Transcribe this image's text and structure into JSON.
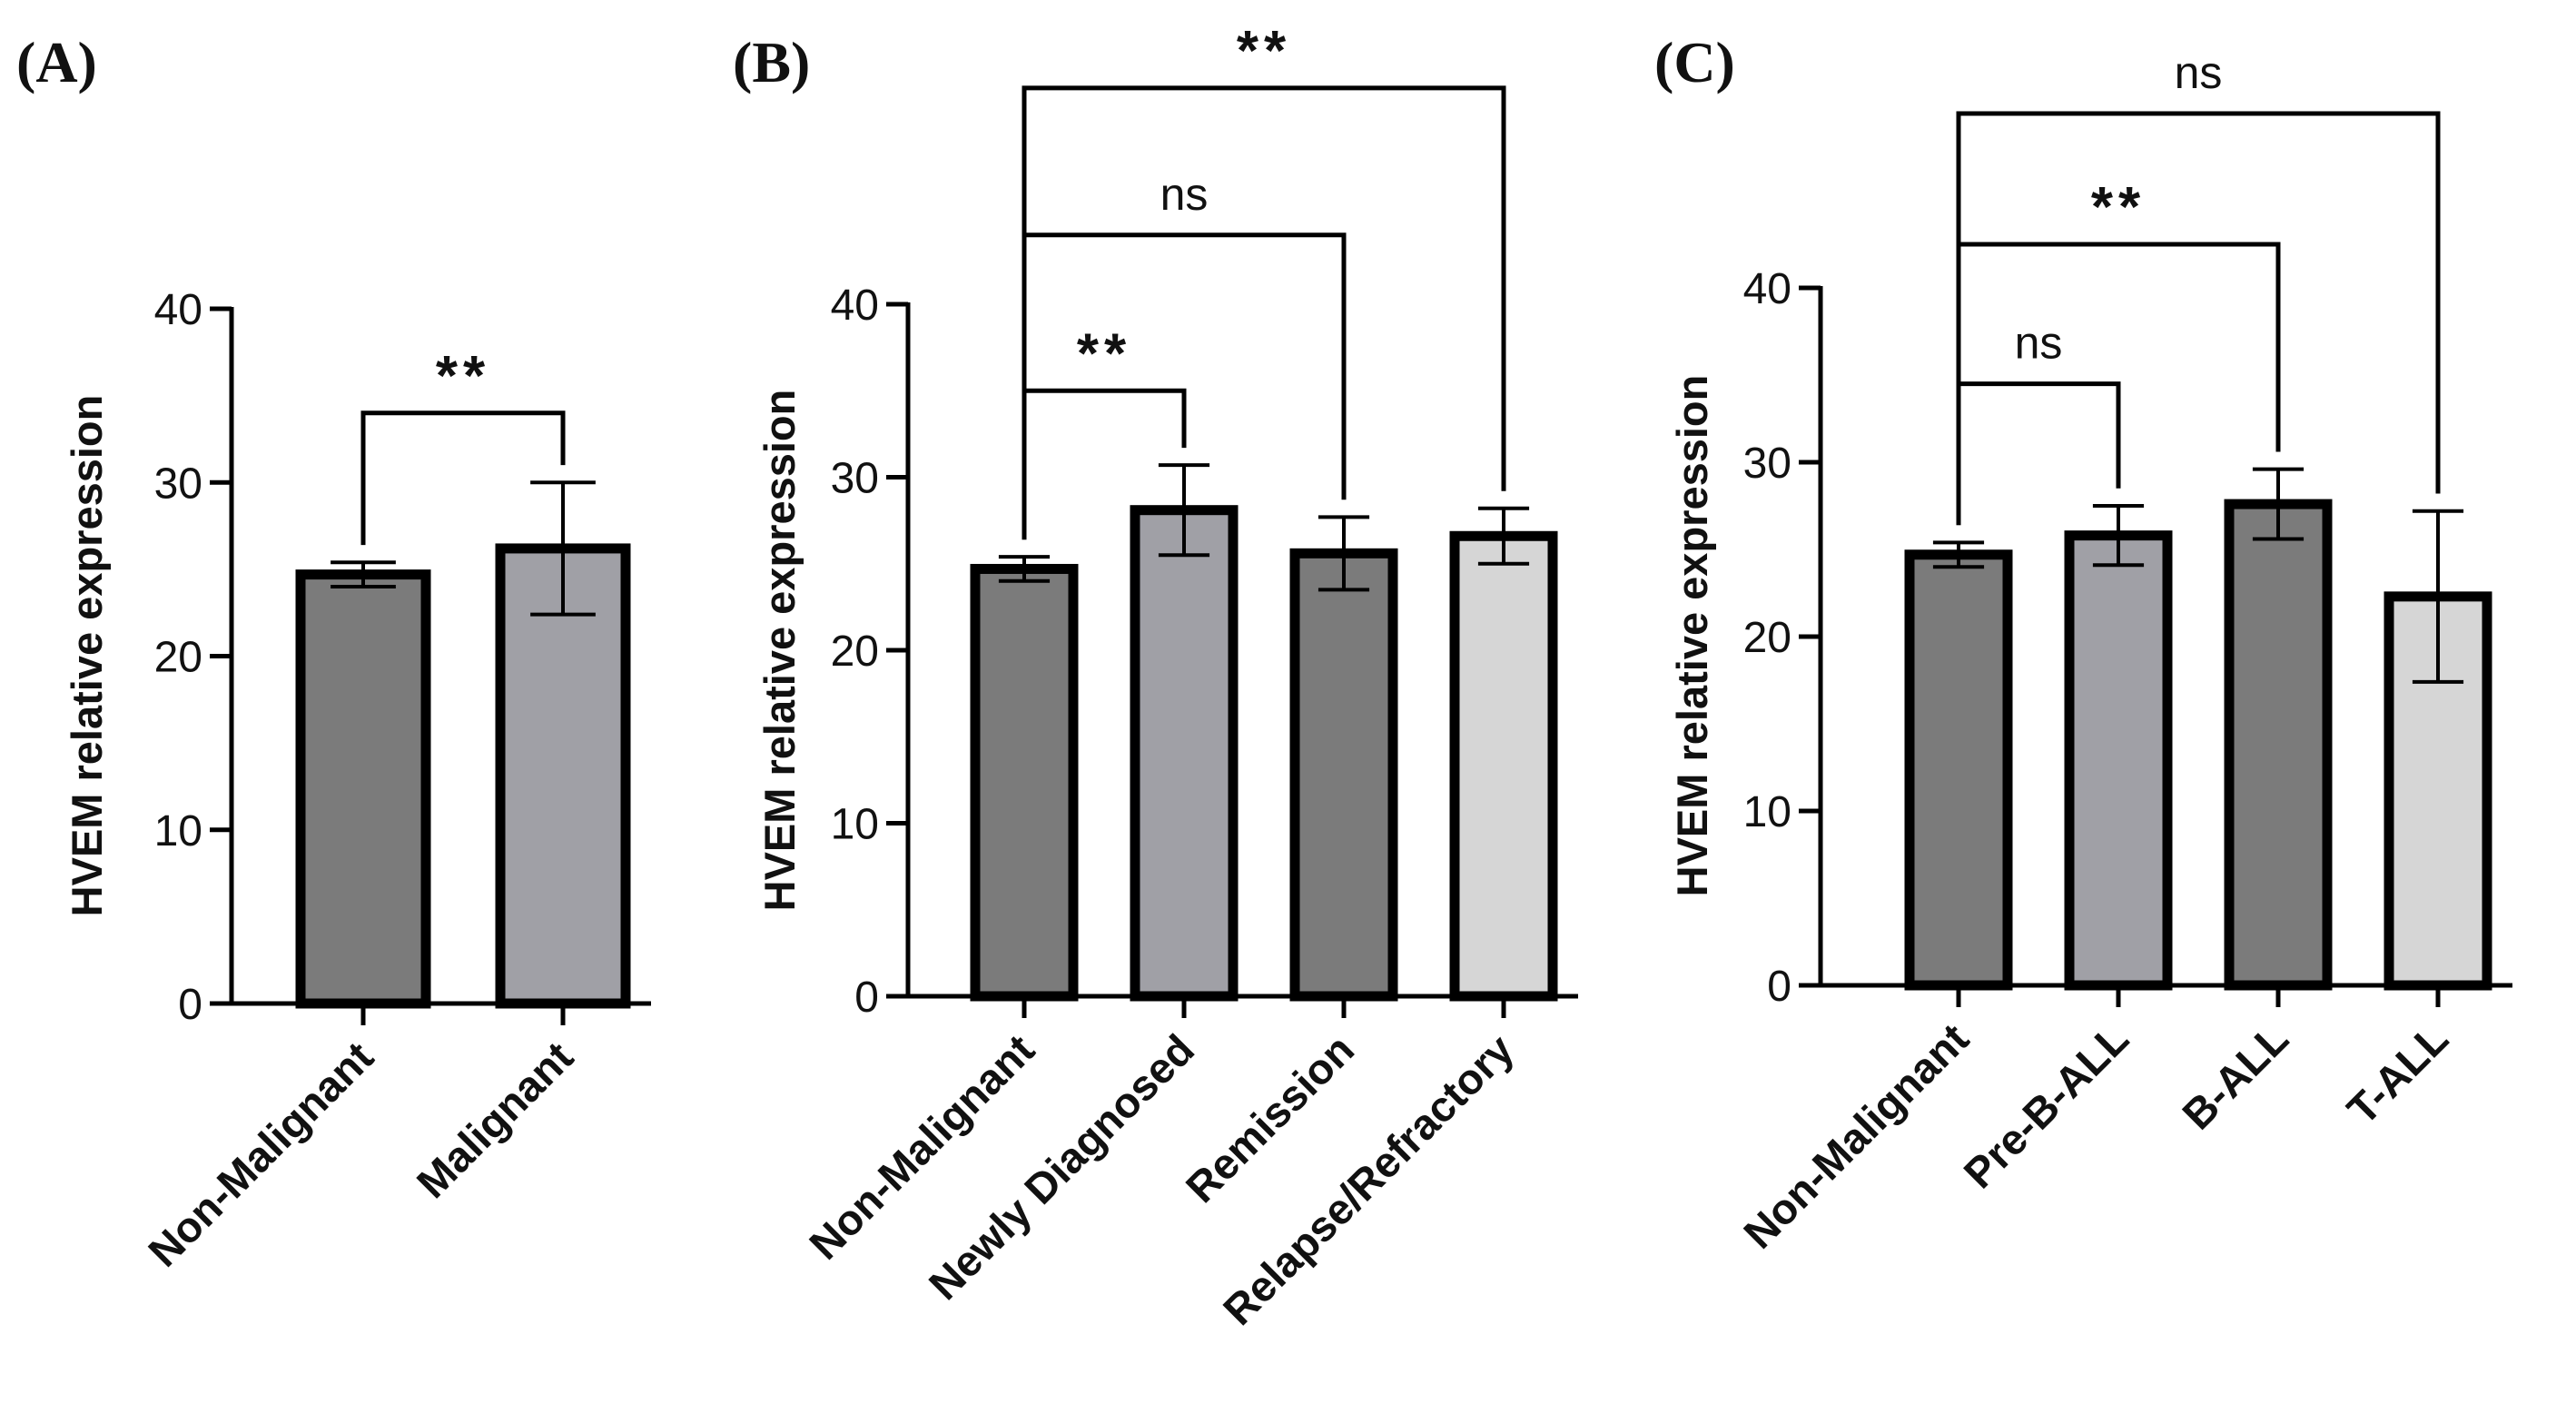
{
  "chart_data": [
    {
      "panel": "(A)",
      "type": "bar",
      "ylabel": "HVEM relative expression",
      "ylim": [
        0,
        40
      ],
      "yticks": [
        0,
        10,
        20,
        30,
        40
      ],
      "categories": [
        "Non-Malignant",
        "Malignant"
      ],
      "values": [
        24.7,
        26.2
      ],
      "errors": [
        0.7,
        3.8
      ],
      "colors": [
        "#7b7b7b",
        "#a0a0a6"
      ],
      "comparisons": [
        {
          "from": 0,
          "to": 1,
          "label": "**",
          "bracket_y": 34
        }
      ]
    },
    {
      "panel": "(B)",
      "type": "bar",
      "ylabel": "HVEM relative expression",
      "ylim": [
        0,
        40
      ],
      "yticks": [
        0,
        10,
        20,
        30,
        40
      ],
      "categories": [
        "Non-Malignant",
        "Newly Diagnosed",
        "Remission",
        "Relapse/Refractory"
      ],
      "values": [
        24.7,
        28.1,
        25.6,
        26.6
      ],
      "errors": [
        0.7,
        2.6,
        2.1,
        1.6
      ],
      "colors": [
        "#7b7b7b",
        "#a0a0a6",
        "#7b7b7b",
        "#d6d6d6"
      ],
      "comparisons": [
        {
          "from": 0,
          "to": 1,
          "label": "**",
          "bracket_y": 35
        },
        {
          "from": 0,
          "to": 2,
          "label": "ns",
          "bracket_y": 44
        },
        {
          "from": 0,
          "to": 3,
          "label": "**",
          "bracket_y": 52.5
        }
      ]
    },
    {
      "panel": "(C)",
      "type": "bar",
      "ylabel": "HVEM relative expression",
      "ylim": [
        0,
        40
      ],
      "yticks": [
        0,
        10,
        20,
        30,
        40
      ],
      "categories": [
        "Non-Malignant",
        "Pre-B-ALL",
        "B-ALL",
        "T-ALL"
      ],
      "values": [
        24.7,
        25.8,
        27.6,
        22.3
      ],
      "errors": [
        0.7,
        1.7,
        2.0,
        4.9
      ],
      "colors": [
        "#7b7b7b",
        "#a0a0a6",
        "#7b7b7b",
        "#d6d6d6"
      ],
      "comparisons": [
        {
          "from": 0,
          "to": 1,
          "label": "ns",
          "bracket_y": 34.5
        },
        {
          "from": 0,
          "to": 2,
          "label": "**",
          "bracket_y": 42.5
        },
        {
          "from": 0,
          "to": 3,
          "label": "ns",
          "bracket_y": 50
        }
      ]
    }
  ]
}
